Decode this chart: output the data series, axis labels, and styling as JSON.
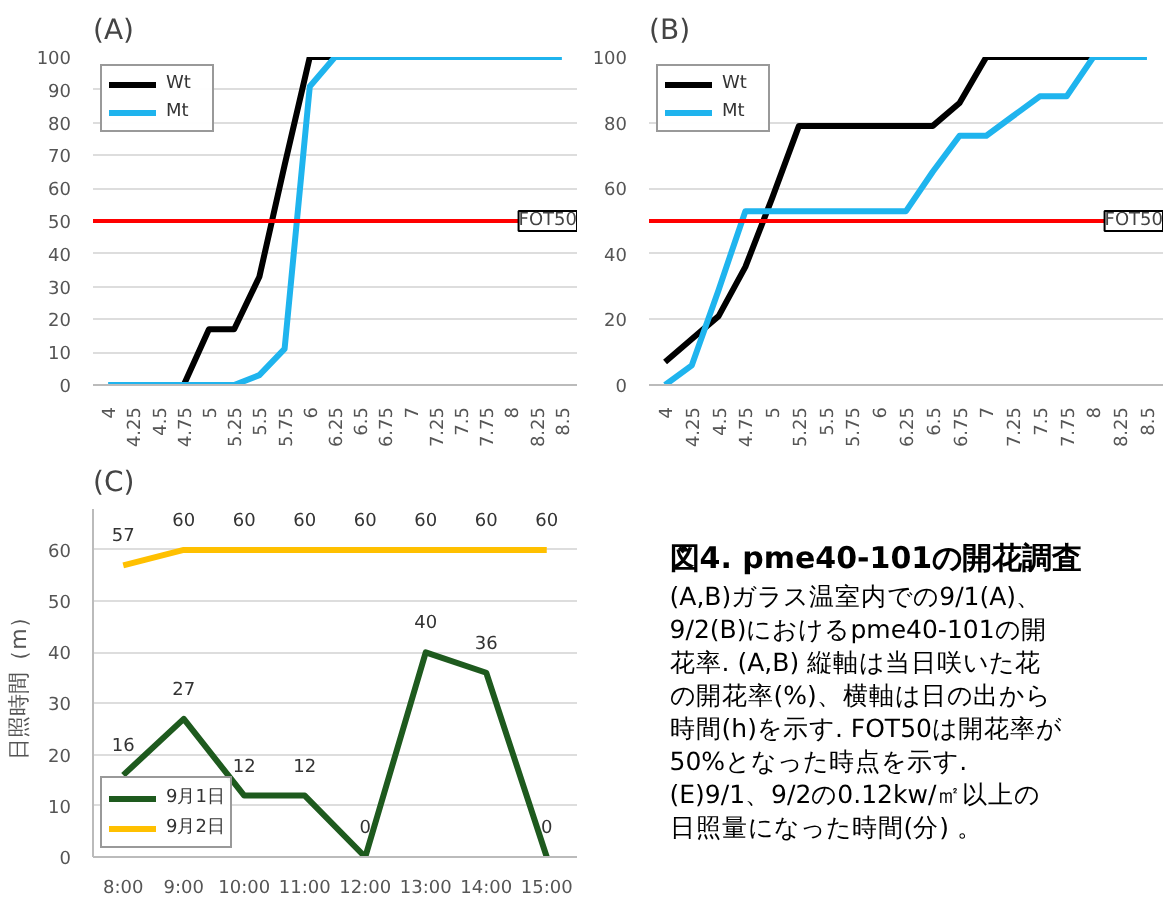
{
  "chart_data": [
    {
      "type": "line",
      "title": "(A)",
      "x": [
        4,
        4.25,
        4.5,
        4.75,
        5,
        5.25,
        5.5,
        5.75,
        6,
        6.25,
        6.5,
        6.75,
        7,
        7.25,
        7.5,
        7.75,
        8,
        8.25,
        8.5
      ],
      "xlim": [
        3.85,
        8.65
      ],
      "xticks": [
        4,
        4.25,
        4.5,
        4.75,
        5,
        5.25,
        5.5,
        5.75,
        6,
        6.25,
        6.5,
        6.75,
        7,
        7.25,
        7.5,
        7.75,
        8,
        8.25,
        8.5
      ],
      "ylim": [
        0,
        100
      ],
      "yticks": [
        0,
        10,
        20,
        30,
        40,
        50,
        60,
        70,
        80,
        90,
        100
      ],
      "grid": "y",
      "legend": "top left",
      "series": [
        {
          "name": "Wt",
          "color": "#000000",
          "values": [
            null,
            null,
            null,
            0,
            17,
            17,
            33,
            67,
            100,
            100,
            null,
            null,
            null,
            null,
            null,
            null,
            null,
            null,
            null
          ]
        },
        {
          "name": "Mt",
          "color": "#1fb4ee",
          "values": [
            0,
            0,
            0,
            0,
            0,
            0,
            3,
            11,
            91,
            100,
            100,
            100,
            100,
            100,
            100,
            100,
            100,
            100,
            100
          ]
        }
      ],
      "ref_lines": [
        {
          "axis": "y",
          "value": 50,
          "label": "FOT50",
          "color": "#ff0000"
        }
      ]
    },
    {
      "type": "line",
      "title": "(B)",
      "x": [
        4,
        4.25,
        4.5,
        4.75,
        5,
        5.25,
        5.5,
        5.75,
        6,
        6.25,
        6.5,
        6.75,
        7,
        7.25,
        7.5,
        7.75,
        8,
        8.25,
        8.5
      ],
      "xlim": [
        3.85,
        8.65
      ],
      "xticks": [
        4,
        4.25,
        4.5,
        4.75,
        5,
        5.25,
        5.5,
        5.75,
        6,
        6.25,
        6.5,
        6.75,
        7,
        7.25,
        7.5,
        7.75,
        8,
        8.25,
        8.5
      ],
      "ylim": [
        0,
        100
      ],
      "yticks": [
        0,
        20,
        40,
        60,
        80,
        100
      ],
      "grid": "y",
      "legend": "top left",
      "series": [
        {
          "name": "Wt",
          "color": "#000000",
          "values": [
            7,
            14,
            21,
            36,
            57,
            79,
            79,
            79,
            79,
            79,
            79,
            86,
            100,
            100,
            100,
            100,
            100,
            null,
            null
          ]
        },
        {
          "name": "Mt",
          "color": "#1fb4ee",
          "values": [
            0,
            6,
            29,
            53,
            53,
            53,
            53,
            53,
            53,
            53,
            65,
            76,
            76,
            82,
            88,
            88,
            100,
            100,
            100
          ]
        }
      ],
      "ref_lines": [
        {
          "axis": "y",
          "value": 50,
          "label": "FOT50",
          "color": "#ff0000"
        }
      ]
    },
    {
      "type": "line",
      "title": "(C)",
      "ylabel": "日照時間（m）",
      "categories": [
        "8:00",
        "9:00",
        "10:00",
        "11:00",
        "12:00",
        "13:00",
        "14:00",
        "15:00"
      ],
      "ylim": [
        0,
        68
      ],
      "yticks": [
        0,
        10,
        20,
        30,
        40,
        50,
        60
      ],
      "grid": "y",
      "legend": "bottom left",
      "data_labels": true,
      "series": [
        {
          "name": "9月1日",
          "color": "#1e5a1e",
          "values": [
            16,
            27,
            12,
            12,
            0,
            40,
            36,
            0
          ]
        },
        {
          "name": "9月2日",
          "color": "#ffc000",
          "values": [
            57,
            60,
            60,
            60,
            60,
            60,
            60,
            60
          ]
        }
      ]
    },
    {
      "type": "other",
      "title": "図4. pme40-101の開花調査",
      "annotations": [
        "(A,B)ガラス温室内での9/1(A)、",
        "9/2(B)におけるpme40-101の開",
        "花率. (A,B) 縦軸は当日咲いた花",
        "の開花率(%)、横軸は日の出から",
        "時間(h)を示す. FOT50は開花率が",
        "50%となった時点を示す.",
        "(E)9/1、9/2の0.12kw/㎡以上の",
        "日照量になった時間(分) 。"
      ]
    }
  ]
}
